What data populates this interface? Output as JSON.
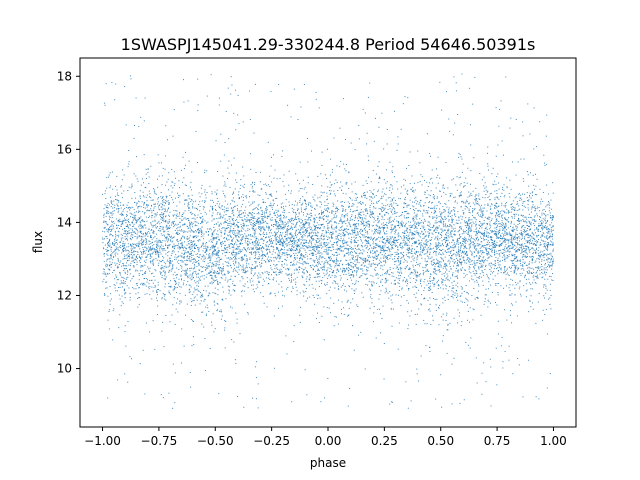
{
  "chart_data": {
    "type": "scatter",
    "title": "1SWASPJ145041.29-330244.8 Period 54646.50391s",
    "xlabel": "phase",
    "ylabel": "flux",
    "xlim": [
      -1.1,
      1.1
    ],
    "ylim": [
      8.4,
      18.5
    ],
    "xticks": [
      -1.0,
      -0.75,
      -0.5,
      -0.25,
      0.0,
      0.25,
      0.5,
      0.75,
      1.0
    ],
    "xtick_labels": [
      "−1.00",
      "−0.75",
      "−0.50",
      "−0.25",
      "0.00",
      "0.25",
      "0.50",
      "0.75",
      "1.00"
    ],
    "yticks": [
      10,
      12,
      14,
      16,
      18
    ],
    "ytick_labels": [
      "10",
      "12",
      "14",
      "16",
      "18"
    ],
    "grid": false,
    "series": [
      {
        "color": "#1f77b4",
        "marker_size": 0.6,
        "x_range": [
          -1.0,
          1.0
        ],
        "y_range": [
          8.9,
          18.1
        ],
        "profile": {
          "phase": [
            -1.0,
            -0.9,
            -0.8,
            -0.7,
            -0.6,
            -0.5,
            -0.4,
            -0.3,
            -0.2,
            -0.1,
            0.0,
            0.1,
            0.2,
            0.3,
            0.4,
            0.5,
            0.6,
            0.7,
            0.8,
            0.9,
            1.0
          ],
          "median_flux": [
            13.4,
            13.6,
            13.6,
            13.5,
            13.4,
            13.3,
            13.5,
            13.6,
            13.6,
            13.5,
            13.4,
            13.4,
            13.6,
            13.6,
            13.5,
            13.3,
            13.4,
            13.6,
            13.6,
            13.5,
            13.4
          ],
          "spread": [
            0.75,
            0.8,
            0.8,
            0.8,
            0.85,
            0.9,
            0.8,
            0.7,
            0.6,
            0.7,
            0.8,
            0.8,
            0.8,
            0.8,
            0.85,
            0.9,
            0.85,
            0.75,
            0.75,
            0.75,
            0.75
          ]
        }
      }
    ]
  }
}
